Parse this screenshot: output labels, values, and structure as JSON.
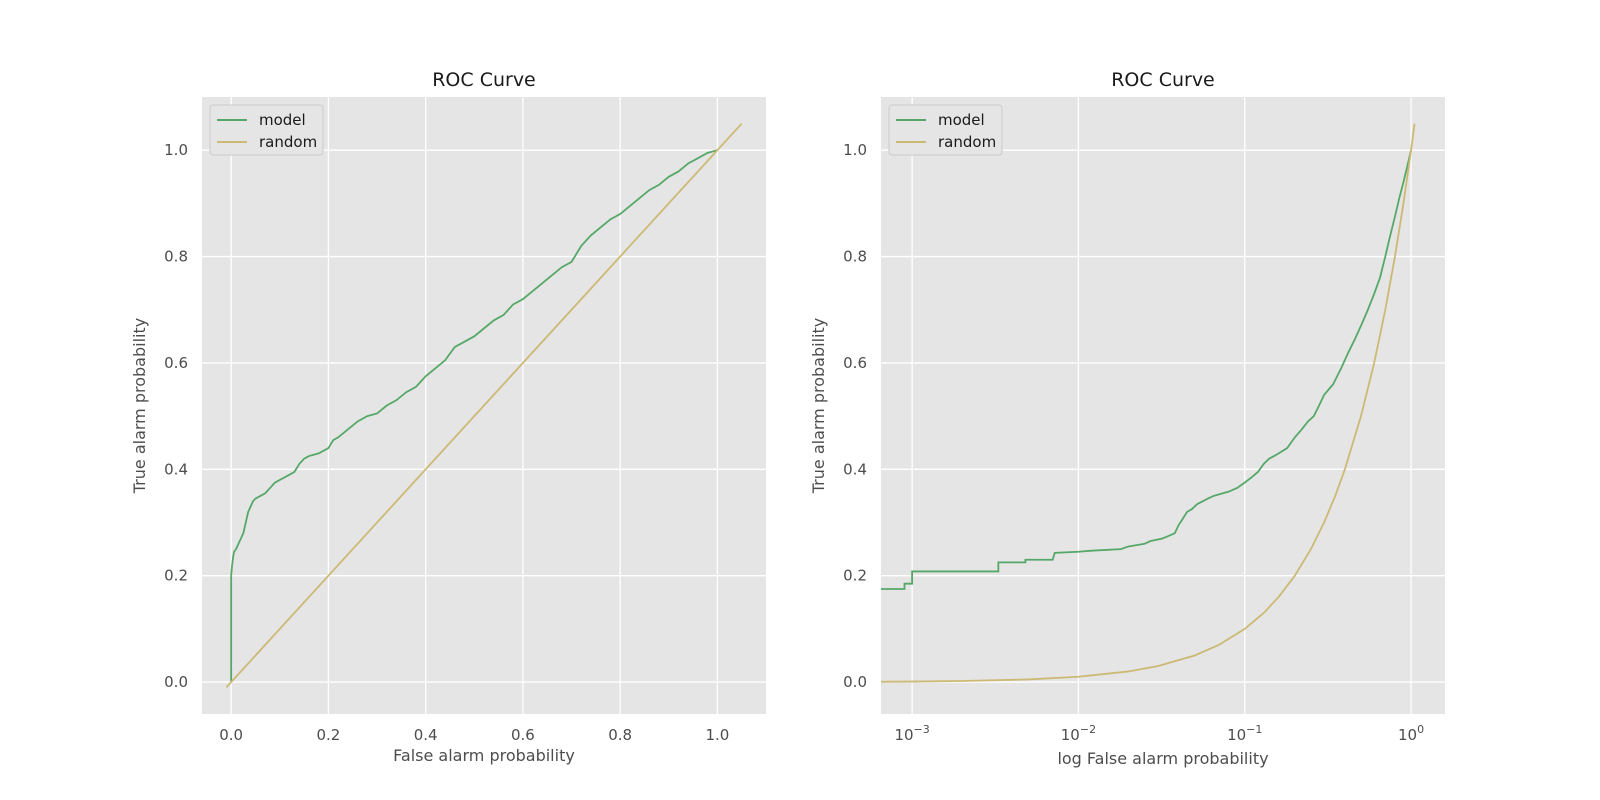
{
  "chart_data": [
    {
      "type": "line",
      "title": "ROC Curve",
      "xlabel": "False alarm probability",
      "ylabel": "True alarm probability",
      "xscale": "linear",
      "xlim": [
        -0.06,
        1.1
      ],
      "ylim": [
        -0.06,
        1.1
      ],
      "xticks": [
        0.0,
        0.2,
        0.4,
        0.6,
        0.8,
        1.0
      ],
      "xtick_labels": [
        "0.0",
        "0.2",
        "0.4",
        "0.6",
        "0.8",
        "1.0"
      ],
      "yticks": [
        0.0,
        0.2,
        0.4,
        0.6,
        0.8,
        1.0
      ],
      "ytick_labels": [
        "0.0",
        "0.2",
        "0.4",
        "0.6",
        "0.8",
        "1.0"
      ],
      "grid": true,
      "legend": "top-left",
      "series": [
        {
          "name": "model",
          "color": "#55a868",
          "x": [
            0.0,
            0.0,
            0.002,
            0.004,
            0.006,
            0.01,
            0.015,
            0.02,
            0.025,
            0.03,
            0.035,
            0.04,
            0.045,
            0.05,
            0.06,
            0.07,
            0.08,
            0.09,
            0.1,
            0.11,
            0.12,
            0.13,
            0.14,
            0.15,
            0.16,
            0.18,
            0.2,
            0.21,
            0.22,
            0.24,
            0.26,
            0.28,
            0.3,
            0.32,
            0.34,
            0.36,
            0.38,
            0.4,
            0.42,
            0.44,
            0.46,
            0.48,
            0.5,
            0.52,
            0.54,
            0.56,
            0.58,
            0.6,
            0.62,
            0.64,
            0.66,
            0.68,
            0.7,
            0.72,
            0.74,
            0.76,
            0.78,
            0.8,
            0.82,
            0.84,
            0.86,
            0.88,
            0.9,
            0.92,
            0.94,
            0.96,
            0.98,
            1.0
          ],
          "y": [
            0.0,
            0.2,
            0.22,
            0.235,
            0.245,
            0.25,
            0.26,
            0.27,
            0.28,
            0.3,
            0.32,
            0.33,
            0.34,
            0.345,
            0.35,
            0.355,
            0.365,
            0.375,
            0.38,
            0.385,
            0.39,
            0.395,
            0.41,
            0.42,
            0.425,
            0.43,
            0.44,
            0.455,
            0.46,
            0.475,
            0.49,
            0.5,
            0.505,
            0.52,
            0.53,
            0.545,
            0.555,
            0.575,
            0.59,
            0.605,
            0.63,
            0.64,
            0.65,
            0.665,
            0.68,
            0.69,
            0.71,
            0.72,
            0.735,
            0.75,
            0.765,
            0.78,
            0.79,
            0.82,
            0.84,
            0.855,
            0.87,
            0.88,
            0.895,
            0.91,
            0.925,
            0.935,
            0.95,
            0.96,
            0.975,
            0.985,
            0.995,
            1.0
          ]
        },
        {
          "name": "random",
          "color": "#ccb974",
          "x": [
            -0.01,
            1.05
          ],
          "y": [
            -0.01,
            1.05
          ]
        }
      ]
    },
    {
      "type": "line",
      "title": "ROC Curve",
      "xlabel": "log False alarm probability",
      "ylabel": "True alarm probability",
      "xscale": "log",
      "xlim": [
        0.00065,
        1.6
      ],
      "ylim": [
        -0.06,
        1.1
      ],
      "xticks": [
        0.001,
        0.01,
        0.1,
        1.0
      ],
      "xtick_bases": [
        "10",
        "10",
        "10",
        "10"
      ],
      "xtick_exponents": [
        "−3",
        "−2",
        "−1",
        "0"
      ],
      "yticks": [
        0.0,
        0.2,
        0.4,
        0.6,
        0.8,
        1.0
      ],
      "ytick_labels": [
        "0.0",
        "0.2",
        "0.4",
        "0.6",
        "0.8",
        "1.0"
      ],
      "grid": true,
      "legend": "top-left",
      "series": [
        {
          "name": "model",
          "color": "#55a868",
          "x": [
            0.00065,
            0.0009,
            0.0009,
            0.001,
            0.001,
            0.0033,
            0.0033,
            0.0048,
            0.0048,
            0.007,
            0.0072,
            0.01,
            0.012,
            0.018,
            0.02,
            0.025,
            0.027,
            0.032,
            0.035,
            0.038,
            0.04,
            0.042,
            0.045,
            0.048,
            0.052,
            0.056,
            0.06,
            0.065,
            0.07,
            0.08,
            0.09,
            0.1,
            0.11,
            0.12,
            0.13,
            0.14,
            0.15,
            0.16,
            0.18,
            0.2,
            0.22,
            0.24,
            0.26,
            0.28,
            0.3,
            0.34,
            0.38,
            0.42,
            0.46,
            0.5,
            0.55,
            0.6,
            0.65,
            0.7,
            0.75,
            0.8,
            0.85,
            0.9,
            0.95,
            1.0
          ],
          "y": [
            0.175,
            0.175,
            0.185,
            0.185,
            0.208,
            0.208,
            0.225,
            0.225,
            0.23,
            0.23,
            0.243,
            0.245,
            0.247,
            0.25,
            0.255,
            0.26,
            0.265,
            0.27,
            0.275,
            0.28,
            0.295,
            0.305,
            0.32,
            0.325,
            0.335,
            0.34,
            0.345,
            0.35,
            0.353,
            0.358,
            0.365,
            0.375,
            0.385,
            0.395,
            0.41,
            0.42,
            0.425,
            0.43,
            0.44,
            0.46,
            0.475,
            0.49,
            0.5,
            0.52,
            0.54,
            0.56,
            0.59,
            0.62,
            0.645,
            0.67,
            0.7,
            0.73,
            0.76,
            0.8,
            0.84,
            0.875,
            0.91,
            0.94,
            0.97,
            1.0
          ]
        },
        {
          "name": "random",
          "color": "#ccb974",
          "x": [
            0.00065,
            0.001,
            0.002,
            0.005,
            0.01,
            0.02,
            0.03,
            0.05,
            0.07,
            0.1,
            0.13,
            0.16,
            0.2,
            0.25,
            0.3,
            0.35,
            0.4,
            0.5,
            0.6,
            0.7,
            0.8,
            0.9,
            1.0,
            1.05
          ],
          "y": [
            0.00065,
            0.001,
            0.002,
            0.005,
            0.01,
            0.02,
            0.03,
            0.05,
            0.07,
            0.1,
            0.13,
            0.16,
            0.2,
            0.25,
            0.3,
            0.35,
            0.4,
            0.5,
            0.6,
            0.7,
            0.8,
            0.9,
            1.0,
            1.05
          ]
        }
      ]
    }
  ]
}
